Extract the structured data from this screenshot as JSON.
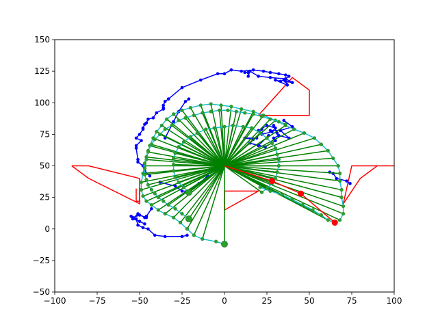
{
  "chart_data": {
    "type": "line",
    "title": "",
    "xlabel": "",
    "ylabel": "",
    "xlim": [
      -100,
      100
    ],
    "ylim": [
      -50,
      150
    ],
    "xticks": [
      -100,
      -75,
      -50,
      -25,
      0,
      25,
      50,
      75,
      100
    ],
    "yticks": [
      -50,
      -25,
      0,
      25,
      50,
      75,
      100,
      125,
      150
    ],
    "xtick_labels": [
      "−100",
      "−75",
      "−50",
      "−25",
      "0",
      "25",
      "50",
      "75",
      "100"
    ],
    "ytick_labels": [
      "−50",
      "−25",
      "0",
      "25",
      "50",
      "75",
      "100",
      "125",
      "150"
    ],
    "grid": false,
    "legend": "none",
    "colors": {
      "obstacles": "#ff0000",
      "arm": "#ff0000",
      "random_path": "#0000ff",
      "tree_edges": "#008000",
      "smoothed_path": "#17becf",
      "nodes": "#2ca02c"
    },
    "hub": [
      0,
      50
    ],
    "obstacles": [
      [
        [
          -90,
          50
        ],
        [
          -80,
          50
        ],
        [
          -50,
          40
        ],
        [
          -50,
          20
        ],
        [
          -80,
          40
        ],
        [
          -90,
          50
        ]
      ],
      [
        [
          -50,
          32
        ],
        [
          -50,
          22
        ],
        [
          -52,
          22
        ],
        [
          -52,
          32
        ]
      ],
      [
        [
          20,
          90
        ],
        [
          50,
          90
        ],
        [
          50,
          110
        ],
        [
          40,
          120
        ],
        [
          20,
          90
        ]
      ],
      [
        [
          0,
          30
        ],
        [
          20,
          30
        ],
        [
          0,
          15
        ],
        [
          0,
          30
        ]
      ],
      [
        [
          100,
          50
        ],
        [
          90,
          50
        ],
        [
          80,
          40
        ],
        [
          70,
          20
        ],
        [
          75,
          50
        ],
        [
          90,
          50
        ],
        [
          100,
          50
        ]
      ]
    ],
    "arm": [
      [
        0,
        50
      ],
      [
        28,
        38
      ],
      [
        45,
        28
      ],
      [
        65,
        5
      ]
    ],
    "arm_joints": [
      [
        28,
        38
      ],
      [
        45,
        28
      ],
      [
        65,
        5
      ]
    ],
    "outer_path": [
      [
        0,
        -12
      ],
      [
        -5,
        -10
      ],
      [
        -13,
        -8
      ],
      [
        -18,
        -5
      ],
      [
        -22,
        0
      ],
      [
        -26,
        5
      ],
      [
        -30,
        9
      ],
      [
        -35,
        12
      ],
      [
        -39,
        15
      ],
      [
        -43,
        19
      ],
      [
        -46,
        22
      ],
      [
        -48,
        26
      ],
      [
        -49,
        31
      ],
      [
        -49,
        37
      ],
      [
        -48,
        44
      ],
      [
        -47,
        50
      ],
      [
        -46,
        55
      ],
      [
        -45,
        61
      ],
      [
        -44,
        66
      ],
      [
        -42,
        72
      ],
      [
        -40,
        77
      ],
      [
        -37,
        82
      ],
      [
        -34,
        87
      ],
      [
        -30,
        91
      ],
      [
        -25,
        94
      ],
      [
        -20,
        96
      ],
      [
        -14,
        98
      ],
      [
        -8,
        99
      ],
      [
        -2,
        98
      ],
      [
        4,
        97
      ],
      [
        10,
        95
      ],
      [
        17,
        93
      ],
      [
        23,
        90
      ],
      [
        30,
        86
      ],
      [
        36,
        82
      ],
      [
        41,
        79
      ],
      [
        47,
        76
      ],
      [
        53,
        72
      ],
      [
        57,
        67
      ],
      [
        61,
        62
      ],
      [
        64,
        56
      ],
      [
        67,
        50
      ],
      [
        68,
        44
      ],
      [
        68,
        38
      ],
      [
        69,
        31
      ],
      [
        69,
        25
      ],
      [
        70,
        18
      ],
      [
        70,
        12
      ],
      [
        68,
        7
      ],
      [
        65,
        5
      ],
      [
        61,
        7
      ],
      [
        57,
        11
      ],
      [
        52,
        15
      ],
      [
        46,
        19
      ],
      [
        40,
        23
      ],
      [
        34,
        27
      ],
      [
        27,
        30
      ],
      [
        21,
        33
      ]
    ],
    "inner_path": [
      [
        -21,
        8
      ],
      [
        -25,
        12
      ],
      [
        -29,
        16
      ],
      [
        -33,
        19
      ],
      [
        -36,
        22
      ],
      [
        -39,
        25
      ],
      [
        -41,
        28
      ],
      [
        -43,
        31
      ],
      [
        -45,
        35
      ],
      [
        -46,
        39
      ],
      [
        -47,
        43
      ],
      [
        -47,
        48
      ],
      [
        -47,
        52
      ],
      [
        -46,
        57
      ],
      [
        -45,
        62
      ],
      [
        -43,
        67
      ],
      [
        -41,
        71
      ],
      [
        -38,
        75
      ],
      [
        -35,
        79
      ],
      [
        -31,
        82
      ],
      [
        -27,
        86
      ],
      [
        -23,
        88
      ],
      [
        -18,
        90
      ],
      [
        -13,
        92
      ],
      [
        -8,
        93
      ],
      [
        -3,
        94
      ],
      [
        2,
        94
      ],
      [
        7,
        93
      ],
      [
        12,
        92
      ],
      [
        17,
        91
      ],
      [
        22,
        89
      ],
      [
        27,
        87
      ],
      [
        32,
        85
      ],
      [
        36,
        83
      ]
    ],
    "mid_path": [
      [
        -21,
        29
      ],
      [
        -24,
        33
      ],
      [
        -27,
        37
      ],
      [
        -29,
        41
      ],
      [
        -30,
        46
      ],
      [
        -30,
        51
      ],
      [
        -30,
        56
      ],
      [
        -29,
        60
      ],
      [
        -27,
        65
      ],
      [
        -24,
        69
      ],
      [
        -20,
        73
      ],
      [
        -16,
        76
      ],
      [
        -11,
        79
      ],
      [
        -6,
        80
      ],
      [
        0,
        81
      ],
      [
        5,
        82
      ],
      [
        11,
        81
      ],
      [
        16,
        80
      ],
      [
        21,
        76
      ],
      [
        25,
        72
      ],
      [
        28,
        68
      ],
      [
        30,
        64
      ],
      [
        31,
        59
      ],
      [
        32,
        55
      ],
      [
        32,
        50
      ],
      [
        31,
        45
      ],
      [
        30,
        40
      ],
      [
        28,
        36
      ],
      [
        25,
        32
      ],
      [
        22,
        29
      ]
    ],
    "tree_points": [
      [
        0,
        -12
      ],
      [
        -21,
        8
      ],
      [
        -21,
        29
      ],
      [
        -13,
        -8
      ],
      [
        -18,
        -5
      ],
      [
        -22,
        0
      ],
      [
        -26,
        5
      ],
      [
        -30,
        9
      ],
      [
        -35,
        12
      ],
      [
        -39,
        15
      ],
      [
        -43,
        19
      ],
      [
        -46,
        22
      ],
      [
        -48,
        26
      ],
      [
        -49,
        31
      ],
      [
        -49,
        37
      ],
      [
        -48,
        44
      ],
      [
        -47,
        50
      ],
      [
        -46,
        55
      ],
      [
        -45,
        61
      ],
      [
        -44,
        66
      ],
      [
        -42,
        72
      ],
      [
        -40,
        77
      ],
      [
        -37,
        82
      ],
      [
        -34,
        87
      ],
      [
        -30,
        91
      ],
      [
        -25,
        94
      ],
      [
        -20,
        96
      ],
      [
        -14,
        98
      ],
      [
        -8,
        99
      ],
      [
        -2,
        98
      ],
      [
        4,
        97
      ],
      [
        10,
        95
      ],
      [
        17,
        93
      ],
      [
        23,
        90
      ],
      [
        30,
        86
      ],
      [
        36,
        82
      ],
      [
        41,
        79
      ],
      [
        47,
        76
      ],
      [
        53,
        72
      ],
      [
        57,
        67
      ],
      [
        61,
        62
      ],
      [
        64,
        56
      ],
      [
        67,
        50
      ],
      [
        68,
        44
      ],
      [
        68,
        38
      ],
      [
        69,
        31
      ],
      [
        69,
        25
      ],
      [
        70,
        18
      ],
      [
        70,
        12
      ],
      [
        68,
        7
      ],
      [
        61,
        7
      ],
      [
        57,
        11
      ],
      [
        52,
        15
      ],
      [
        46,
        19
      ],
      [
        40,
        23
      ],
      [
        34,
        27
      ],
      [
        27,
        30
      ],
      [
        -24,
        33
      ],
      [
        -27,
        37
      ],
      [
        -29,
        41
      ],
      [
        -30,
        46
      ],
      [
        -30,
        51
      ],
      [
        -30,
        56
      ],
      [
        -29,
        60
      ],
      [
        -27,
        65
      ],
      [
        -24,
        69
      ],
      [
        -20,
        73
      ],
      [
        -16,
        76
      ],
      [
        -11,
        79
      ],
      [
        -6,
        80
      ],
      [
        0,
        81
      ],
      [
        5,
        82
      ],
      [
        11,
        81
      ],
      [
        16,
        80
      ],
      [
        21,
        76
      ],
      [
        25,
        72
      ],
      [
        28,
        68
      ],
      [
        30,
        64
      ],
      [
        31,
        59
      ],
      [
        32,
        55
      ],
      [
        32,
        50
      ],
      [
        31,
        45
      ],
      [
        30,
        40
      ],
      [
        28,
        36
      ],
      [
        25,
        32
      ],
      [
        22,
        29
      ],
      [
        -33,
        19
      ],
      [
        -39,
        25
      ],
      [
        -45,
        35
      ],
      [
        -47,
        43
      ],
      [
        -46,
        57
      ],
      [
        -43,
        67
      ],
      [
        -38,
        75
      ],
      [
        -31,
        82
      ],
      [
        -23,
        88
      ],
      [
        -13,
        92
      ],
      [
        -3,
        94
      ],
      [
        7,
        93
      ],
      [
        17,
        91
      ],
      [
        27,
        87
      ]
    ],
    "big_nodes": [
      [
        0,
        -12
      ],
      [
        -21,
        8
      ],
      [
        -21,
        29
      ]
    ],
    "random_segments": [
      [
        [
          -38,
          37
        ],
        [
          -29,
          34
        ],
        [
          -25,
          30
        ],
        [
          -20,
          30
        ],
        [
          -15,
          36
        ],
        [
          -10,
          42
        ]
      ],
      [
        [
          -55,
          10
        ],
        [
          -52,
          8
        ],
        [
          -51,
          3
        ],
        [
          -48,
          1
        ],
        [
          -45,
          0
        ],
        [
          -41,
          -5
        ],
        [
          -35,
          -6
        ],
        [
          -25,
          -6
        ],
        [
          -22,
          -5
        ]
      ],
      [
        [
          -54,
          8
        ],
        [
          -51,
          12
        ],
        [
          -47,
          9
        ],
        [
          -46,
          10
        ],
        [
          -43,
          16
        ]
      ],
      [
        [
          -54,
          8
        ],
        [
          -50,
          6
        ],
        [
          -47,
          4
        ]
      ],
      [
        [
          -54,
          9
        ],
        [
          -50,
          11
        ],
        [
          -46,
          9
        ]
      ],
      [
        [
          -35,
          72
        ],
        [
          -30,
          85
        ],
        [
          -27,
          93
        ],
        [
          -23,
          101
        ],
        [
          -21,
          103
        ]
      ],
      [
        [
          -33,
          103
        ],
        [
          -25,
          112
        ],
        [
          -14,
          118
        ],
        [
          -4,
          123
        ],
        [
          0,
          123
        ],
        [
          4,
          126
        ],
        [
          10,
          125
        ],
        [
          17,
          126
        ],
        [
          23,
          125
        ],
        [
          27,
          124
        ],
        [
          32,
          123
        ],
        [
          36,
          122
        ],
        [
          38,
          121
        ],
        [
          35,
          118
        ],
        [
          33,
          117
        ],
        [
          30,
          118
        ],
        [
          37,
          114
        ],
        [
          36,
          117
        ],
        [
          40,
          116
        ],
        [
          36,
          119
        ],
        [
          27,
          120
        ],
        [
          20,
          121
        ],
        [
          15,
          125
        ],
        [
          14,
          121
        ],
        [
          14,
          124
        ],
        [
          12,
          124
        ]
      ],
      [
        [
          -33,
          103
        ],
        [
          -35,
          101
        ],
        [
          -36,
          98
        ],
        [
          -36,
          96
        ]
      ],
      [
        [
          -36,
          95
        ],
        [
          -40,
          92
        ],
        [
          -42,
          88
        ],
        [
          -45,
          87
        ],
        [
          -46,
          84
        ],
        [
          -47,
          83
        ],
        [
          -48,
          80
        ]
      ],
      [
        [
          -48,
          79
        ],
        [
          -50,
          75
        ],
        [
          -52,
          72
        ],
        [
          -49,
          70
        ],
        [
          -52,
          66
        ]
      ],
      [
        [
          -52,
          64
        ],
        [
          -51,
          55
        ],
        [
          -51,
          53
        ],
        [
          -48,
          50
        ],
        [
          -47,
          46
        ],
        [
          -44,
          42
        ]
      ],
      [
        [
          22,
          75
        ],
        [
          28,
          77
        ],
        [
          30,
          80
        ],
        [
          25,
          82
        ],
        [
          20,
          78
        ],
        [
          22,
          79
        ],
        [
          19,
          72
        ],
        [
          12,
          72
        ],
        [
          17,
          71
        ]
      ],
      [
        [
          30,
          70
        ],
        [
          24,
          65
        ],
        [
          15,
          68
        ],
        [
          20,
          66
        ],
        [
          26,
          74
        ]
      ],
      [
        [
          27,
          78
        ],
        [
          33,
          78
        ],
        [
          38,
          72
        ],
        [
          32,
          74
        ],
        [
          29,
          72
        ]
      ],
      [
        [
          33,
          78
        ],
        [
          40,
          81
        ],
        [
          35,
          86
        ]
      ],
      [
        [
          29,
          82
        ],
        [
          31,
          76
        ]
      ],
      [
        [
          62,
          45
        ],
        [
          64,
          44
        ],
        [
          66,
          40
        ],
        [
          72,
          38
        ],
        [
          74,
          36
        ]
      ]
    ]
  }
}
